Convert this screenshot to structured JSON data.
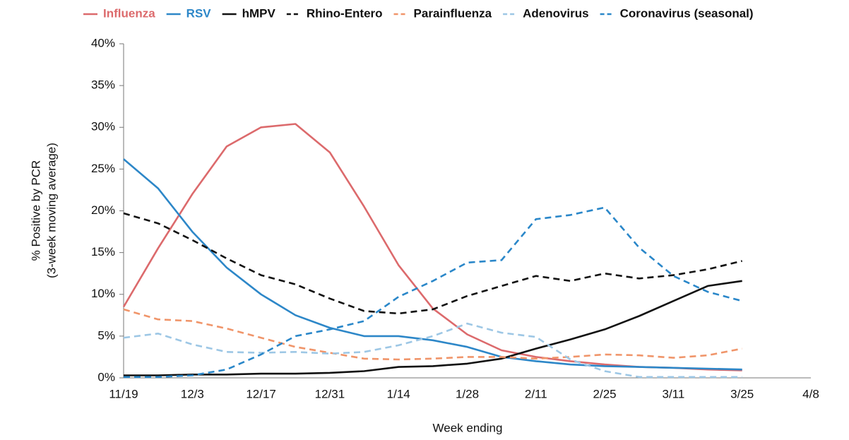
{
  "chart_data": {
    "type": "line",
    "ylabel": [
      "% Positive by PCR",
      "(3-week moving average)"
    ],
    "xlabel": "Week ending",
    "categories": [
      "11/19",
      null,
      "12/3",
      null,
      "12/17",
      null,
      "12/31",
      null,
      "1/14",
      null,
      "1/28",
      null,
      "2/11",
      null,
      "2/25",
      null,
      "3/11",
      null,
      "3/25",
      null,
      "4/8"
    ],
    "ylim": [
      0,
      40
    ],
    "yticks": [
      {
        "value": 0,
        "label": "0%"
      },
      {
        "value": 5,
        "label": "5%"
      },
      {
        "value": 10,
        "label": "10%"
      },
      {
        "value": 15,
        "label": "15%"
      },
      {
        "value": 20,
        "label": "20%"
      },
      {
        "value": 25,
        "label": "25%"
      },
      {
        "value": 30,
        "label": "30%"
      },
      {
        "value": 35,
        "label": "35%"
      },
      {
        "value": 40,
        "label": "40%"
      }
    ],
    "grid": false,
    "legend": "top",
    "series": [
      {
        "name": "Influenza",
        "color": "#dc6a6c",
        "dashed": false,
        "values": [
          8.5,
          15.5,
          22,
          27.7,
          30,
          30.4,
          27,
          20.5,
          13.5,
          8.3,
          5.2,
          3.3,
          2.5,
          2.0,
          1.6,
          1.3,
          1.2,
          1.0,
          0.9,
          null,
          null
        ]
      },
      {
        "name": "RSV",
        "color": "#2d87c8",
        "dashed": false,
        "values": [
          26.2,
          22.7,
          17.5,
          13.2,
          10,
          7.5,
          6,
          5,
          5,
          4.5,
          3.7,
          2.5,
          2,
          1.6,
          1.4,
          1.3,
          1.2,
          1.1,
          1.0,
          null,
          null
        ]
      },
      {
        "name": "hMPV",
        "color": "#111111",
        "dashed": false,
        "values": [
          0.3,
          0.3,
          0.4,
          0.4,
          0.5,
          0.5,
          0.6,
          0.8,
          1.3,
          1.4,
          1.7,
          2.3,
          3.5,
          4.6,
          5.8,
          7.4,
          9.2,
          11,
          11.6,
          null,
          null
        ]
      },
      {
        "name": "Rhino-Entero",
        "color": "#111111",
        "dashed": true,
        "values": [
          19.7,
          18.5,
          16.5,
          14.3,
          12.3,
          11.2,
          9.5,
          8,
          7.7,
          8.2,
          9.8,
          11,
          12.2,
          11.6,
          12.5,
          11.9,
          12.3,
          13,
          14,
          null,
          null
        ]
      },
      {
        "name": "Parainfluenza",
        "color": "#f0956a",
        "dashed": true,
        "values": [
          8.2,
          7,
          6.8,
          5.9,
          4.8,
          3.7,
          3,
          2.3,
          2.2,
          2.3,
          2.5,
          2.5,
          2.3,
          2.5,
          2.8,
          2.7,
          2.4,
          2.7,
          3.5,
          null,
          null
        ]
      },
      {
        "name": "Adenovirus",
        "color": "#9dc7e5",
        "dashed": true,
        "values": [
          4.8,
          5.3,
          4,
          3.1,
          3,
          3.1,
          2.9,
          3.1,
          3.9,
          5,
          6.5,
          5.4,
          4.9,
          2.2,
          0.8,
          0.1,
          0.1,
          0.1,
          0.1,
          null,
          null
        ]
      },
      {
        "name": "Coronavirus (seasonal)",
        "color": "#2a87c9",
        "dashed": true,
        "values": [
          0.1,
          0.1,
          0.3,
          1,
          2.8,
          5,
          5.8,
          6.8,
          9.7,
          11.6,
          13.8,
          14.1,
          19,
          19.5,
          20.4,
          15.6,
          12.2,
          10.3,
          9.2,
          null,
          null
        ]
      }
    ]
  }
}
